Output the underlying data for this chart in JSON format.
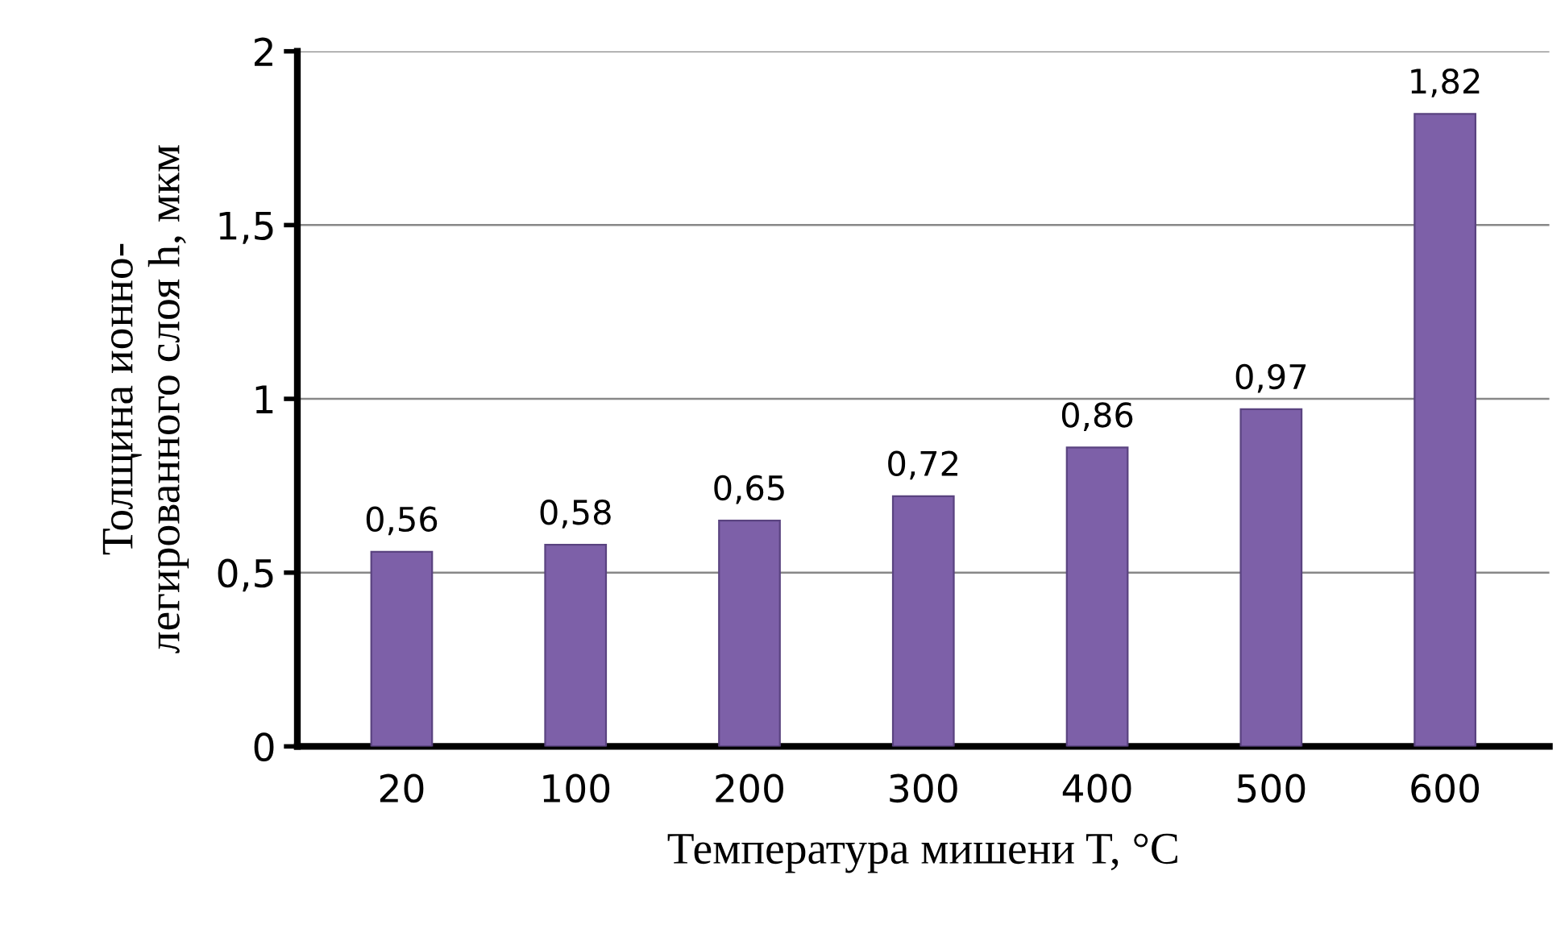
{
  "chart_data": {
    "type": "bar",
    "xlabel": "Температура мишени T, °C",
    "ylabel": "Толщина ионно-\nлегированного слоя h, мкм",
    "categories": [
      "20",
      "100",
      "200",
      "300",
      "400",
      "500",
      "600"
    ],
    "values": [
      0.56,
      0.58,
      0.65,
      0.72,
      0.86,
      0.97,
      1.82
    ],
    "value_labels": [
      "0,56",
      "0,58",
      "0,65",
      "0,72",
      "0,86",
      "0,97",
      "1,82"
    ],
    "color": "#7d60a8",
    "ylim": [
      0,
      2
    ],
    "yticks": [
      0,
      {
        "value": 0.5,
        "label": "0,5"
      },
      1,
      {
        "value": 1.5,
        "label": "1,5"
      },
      2
    ],
    "grid": "y",
    "legend": false
  }
}
